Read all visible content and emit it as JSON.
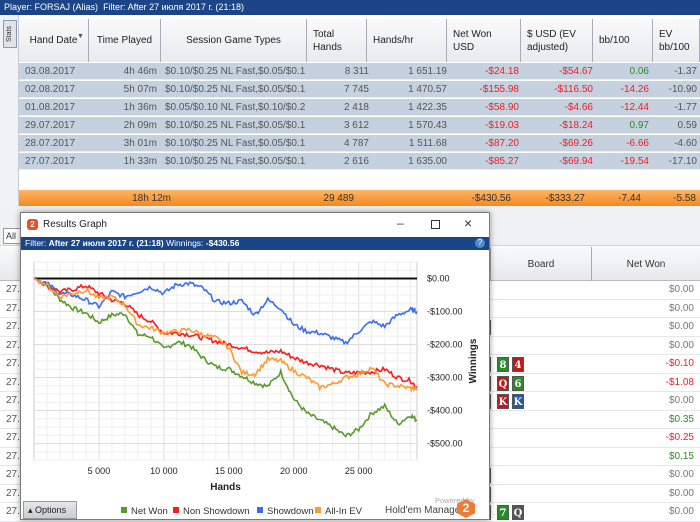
{
  "topbar": {
    "player_label": "Player:",
    "player": "FORSAJ (Alias)",
    "filter_label": "Filter:",
    "filter": "After 27 июля 2017 г. (21:18)"
  },
  "stats_tab": "Stats",
  "columns": [
    "Hand Date",
    "Time Played",
    "Session Game Types",
    "Total Hands",
    "Hands/hr",
    "Net Won USD",
    "$ USD (EV adjusted)",
    "bb/100",
    "EV bb/100"
  ],
  "rows": [
    [
      "03.08.2017",
      "4h 46m",
      "$0.10/$0.25 NL Fast,$0.05/$0.10",
      "8 311",
      "1 651.19",
      "-$24.18",
      "-$54.67",
      "0.06",
      "-1.37"
    ],
    [
      "02.08.2017",
      "5h 07m",
      "$0.10/$0.25 NL Fast,$0.05/$0.10",
      "7 745",
      "1 470.57",
      "-$155.98",
      "-$116.50",
      "-14.26",
      "-10.90"
    ],
    [
      "01.08.2017",
      "1h 36m",
      "$0.05/$0.10 NL Fast,$0.10/$0.25",
      "2 418",
      "1 422.35",
      "-$58.90",
      "-$4.66",
      "-12.44",
      "-1.77"
    ],
    [
      "29.07.2017",
      "2h 09m",
      "$0.10/$0.25 NL Fast,$0.05/$0.10",
      "3 612",
      "1 570.43",
      "-$19.03",
      "-$18.24",
      "0.97",
      "0.59"
    ],
    [
      "28.07.2017",
      "3h 01m",
      "$0.10/$0.25 NL Fast,$0.05/$0.10",
      "4 787",
      "1 511.68",
      "-$87.20",
      "-$69.26",
      "-6.66",
      "-4.60"
    ],
    [
      "27.07.2017",
      "1h 33m",
      "$0.10/$0.25 NL Fast,$0.05/$0.10",
      "2 616",
      "1 635.00",
      "-$85.27",
      "-$69.94",
      "-19.54",
      "-17.10"
    ]
  ],
  "total": {
    "time": "18h 12m",
    "hands": "29 489",
    "net": "-$430.56",
    "ev": "-$333.27",
    "bb": "-7.44",
    "evbb": "-5.58"
  },
  "all_button": "All",
  "hands_grid": {
    "board_header": "Board",
    "net_header": "Net Won",
    "date_prefix": "27.",
    "rows": [
      {
        "net": "$0.00",
        "cards": []
      },
      {
        "net": "$0.00",
        "cards": []
      },
      {
        "net": "$0.00",
        "cards": [
          {
            "r": "",
            "c": "#1e5aa8"
          }
        ]
      },
      {
        "net": "$0.00",
        "cards": []
      },
      {
        "net": "-$0.10",
        "cards": [
          {
            "r": "",
            "c": "#1e5aa8"
          },
          {
            "r": "8",
            "c": "#2a8a2a"
          },
          {
            "r": "4",
            "c": "#b81c1c"
          }
        ]
      },
      {
        "net": "-$1.08",
        "cards": [
          {
            "r": "",
            "c": "#1e5aa8"
          },
          {
            "r": "Q",
            "c": "#b81c1c"
          },
          {
            "r": "6",
            "c": "#2a8a2a"
          }
        ]
      },
      {
        "net": "$0.00",
        "cards": [
          {
            "r": "",
            "c": "#333333"
          },
          {
            "r": "K",
            "c": "#b81c1c"
          },
          {
            "r": "K",
            "c": "#1e5aa8"
          }
        ]
      },
      {
        "net": "$0.35",
        "cards": []
      },
      {
        "net": "-$0.25",
        "cards": []
      },
      {
        "net": "$0.15",
        "cards": []
      },
      {
        "net": "$0.00",
        "cards": [
          {
            "r": "",
            "c": "#b81c1c"
          }
        ]
      },
      {
        "net": "$0.00",
        "cards": [
          {
            "r": "",
            "c": "#2a8a2a"
          }
        ]
      },
      {
        "net": "$0.00",
        "cards": [
          {
            "r": "",
            "c": "#555555"
          },
          {
            "r": "7",
            "c": "#2a8a2a"
          },
          {
            "r": "Q",
            "c": "#555555"
          }
        ]
      }
    ]
  },
  "window": {
    "title": "Results Graph",
    "filter_label": "Filter:",
    "filter": "After 27 июля 2017 г. (21:18)",
    "winnings_label": "Winnings:",
    "winnings": "-$430.56",
    "options": "Options",
    "powered_by": "Powered by",
    "brand": "Hold'em Manager",
    "brand_logo": "2"
  },
  "chart_data": {
    "type": "line",
    "xlabel": "Hands",
    "ylabel": "Winnings",
    "xlim": [
      0,
      29489
    ],
    "ylim": [
      -550,
      50
    ],
    "xticks": [
      5000,
      10000,
      15000,
      20000,
      25000
    ],
    "xtick_labels": [
      "5 000",
      "10 000",
      "15 000",
      "20 000",
      "25 000"
    ],
    "yticks": [
      0,
      -100,
      -200,
      -300,
      -400,
      -500
    ],
    "ytick_labels": [
      "$0.00",
      "-$100.00",
      "-$200.00",
      "-$300.00",
      "-$400.00",
      "-$500.00"
    ],
    "legend": "bottom",
    "grid": true,
    "x": [
      0,
      1000,
      2000,
      3000,
      4000,
      5000,
      6000,
      7000,
      8000,
      9000,
      10000,
      11000,
      12000,
      13000,
      14000,
      15000,
      16000,
      17000,
      18000,
      19000,
      20000,
      21000,
      22000,
      23000,
      24000,
      25000,
      26000,
      27000,
      28000,
      29000,
      29489
    ],
    "series": [
      {
        "name": "Net Won",
        "color": "#5a9a2a",
        "values": [
          0,
          -20,
          -63,
          -90,
          -105,
          -133,
          -111,
          -106,
          -170,
          -176,
          -214,
          -192,
          -203,
          -241,
          -268,
          -274,
          -295,
          -316,
          -327,
          -284,
          -365,
          -408,
          -430,
          -451,
          -478,
          -457,
          -408,
          -387,
          -441,
          -414,
          -430.56
        ]
      },
      {
        "name": "Non Showdown",
        "color": "#ff1a1a",
        "values": [
          0,
          -20,
          -40,
          -33,
          -22,
          -45,
          -65,
          -75,
          -110,
          -130,
          -165,
          -165,
          -170,
          -180,
          -190,
          -200,
          -210,
          -220,
          -225,
          -220,
          -240,
          -255,
          -262,
          -275,
          -287,
          -285,
          -283,
          -275,
          -300,
          -310,
          -330
        ]
      },
      {
        "name": "Showdown",
        "color": "#3a6ef0",
        "values": [
          0,
          -15,
          -45,
          -50,
          -65,
          -85,
          -40,
          -55,
          -40,
          -25,
          -45,
          -18,
          -15,
          -30,
          -70,
          -75,
          -68,
          -110,
          -65,
          -90,
          -140,
          -160,
          -165,
          -180,
          -195,
          -160,
          -130,
          -145,
          -110,
          -95,
          -100
        ]
      },
      {
        "name": "All-In EV",
        "color": "#ff9a33",
        "values": [
          0,
          -20,
          -55,
          -45,
          -35,
          -60,
          -55,
          -80,
          -140,
          -150,
          -165,
          -160,
          -155,
          -170,
          -180,
          -210,
          -285,
          -290,
          -245,
          -250,
          -280,
          -300,
          -330,
          -320,
          -300,
          -290,
          -270,
          -320,
          -325,
          -333,
          -333.27
        ]
      }
    ]
  }
}
